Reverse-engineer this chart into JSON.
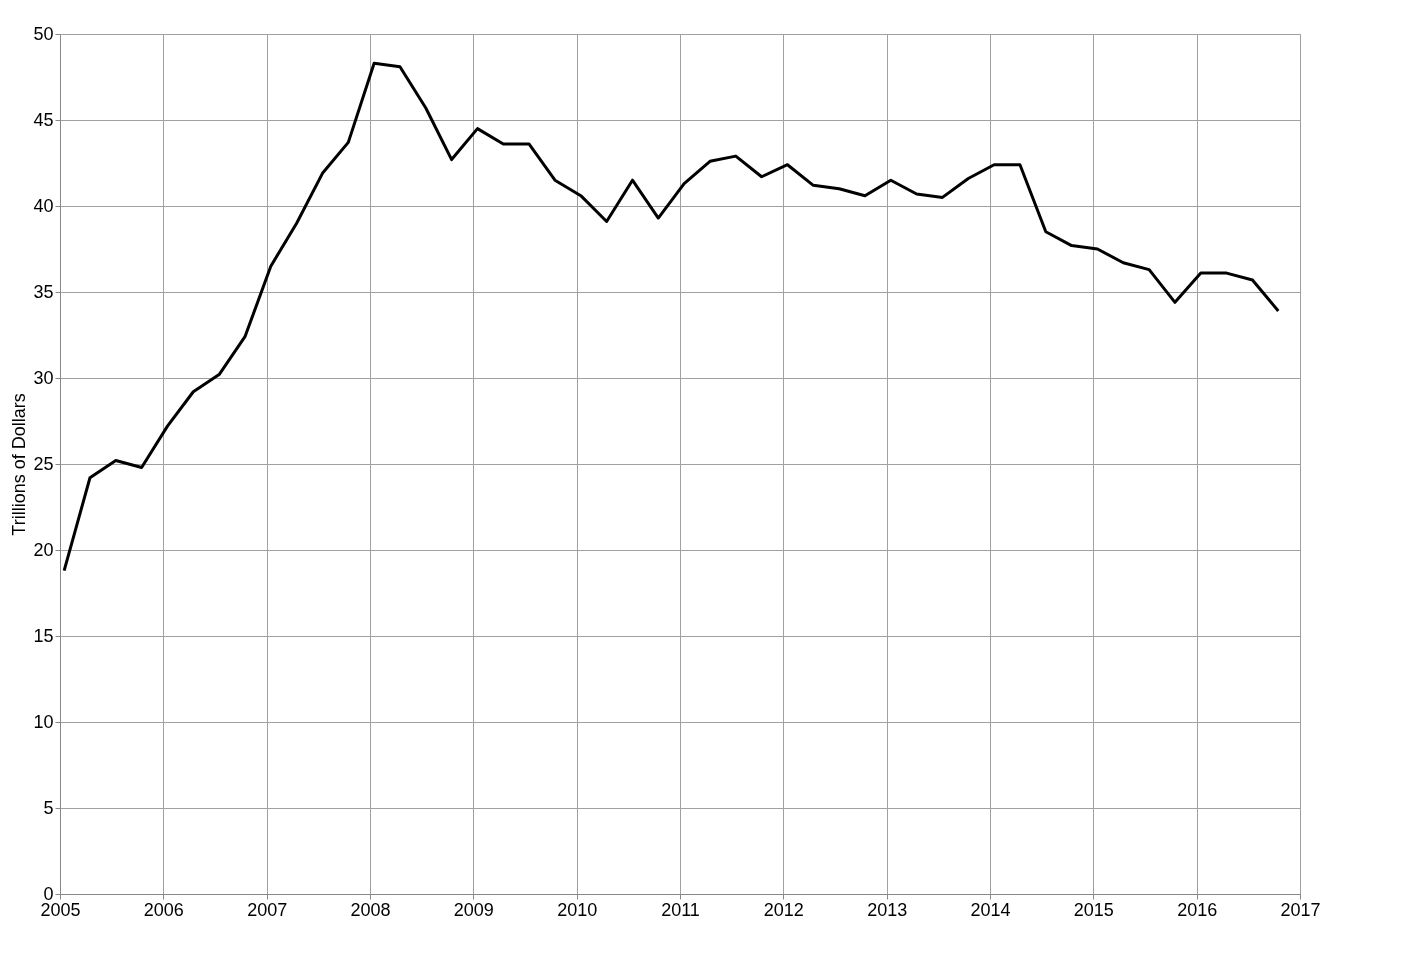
{
  "chart_data": {
    "type": "line",
    "ylabel": "Trillions of Dollars",
    "x": [
      2005.04,
      2005.29,
      2005.54,
      2005.79,
      2006.04,
      2006.29,
      2006.54,
      2006.79,
      2007.04,
      2007.29,
      2007.54,
      2007.79,
      2008.04,
      2008.29,
      2008.54,
      2008.79,
      2009.04,
      2009.29,
      2009.54,
      2009.79,
      2010.04,
      2010.29,
      2010.54,
      2010.79,
      2011.04,
      2011.29,
      2011.54,
      2011.79,
      2012.04,
      2012.29,
      2012.54,
      2012.79,
      2013.04,
      2013.29,
      2013.54,
      2013.79,
      2014.04,
      2014.29,
      2014.54,
      2014.79,
      2015.04,
      2015.29,
      2015.54,
      2015.79,
      2016.04,
      2016.29,
      2016.54,
      2016.79
    ],
    "series": [
      {
        "color": "#000000",
        "values": [
          18.8,
          24.2,
          25.2,
          24.8,
          27.2,
          29.2,
          30.2,
          32.4,
          36.5,
          39.0,
          41.9,
          43.7,
          48.3,
          48.1,
          45.7,
          42.7,
          44.5,
          43.6,
          43.6,
          41.5,
          40.6,
          39.1,
          41.5,
          39.3,
          41.3,
          42.6,
          42.9,
          41.7,
          42.4,
          41.2,
          41.0,
          40.6,
          41.5,
          40.7,
          40.5,
          41.6,
          42.4,
          42.4,
          38.5,
          37.7,
          37.5,
          36.7,
          36.3,
          34.4,
          36.1,
          36.1,
          35.7,
          33.9
        ]
      }
    ],
    "xlim": [
      2005,
      2017
    ],
    "xticks": [
      2005,
      2006,
      2007,
      2008,
      2009,
      2010,
      2011,
      2012,
      2013,
      2014,
      2015,
      2016,
      2017
    ],
    "ylim": [
      0,
      50
    ],
    "yticks": [
      0,
      5,
      10,
      15,
      20,
      25,
      30,
      35,
      40,
      45,
      50
    ],
    "grid": true,
    "marker": "none",
    "line_style": "solid"
  }
}
